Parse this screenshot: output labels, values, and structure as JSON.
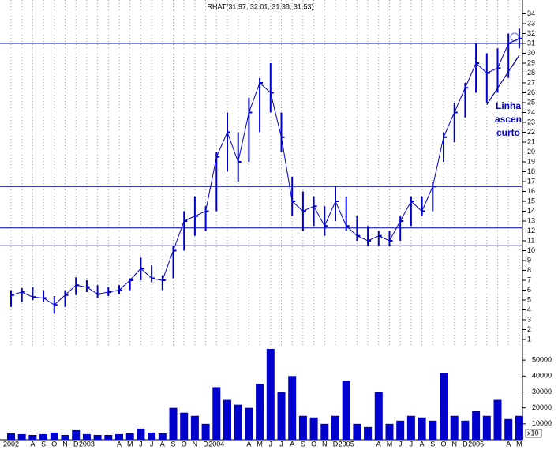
{
  "chart_data": {
    "type": "ohlc",
    "title": "RHAT(31.97, 32.01, 31.38, 31.53)",
    "categories": [
      "2002",
      null,
      "A",
      "S",
      "O",
      "N",
      "D",
      "2003",
      null,
      null,
      "A",
      "M",
      "J",
      "J",
      "A",
      "S",
      "O",
      "N",
      "D",
      "2004",
      null,
      null,
      "A",
      "M",
      "J",
      "J",
      "A",
      "S",
      "O",
      "N",
      "D",
      "2005",
      null,
      null,
      "A",
      "M",
      "J",
      "J",
      "A",
      "S",
      "O",
      "N",
      "D",
      "2006",
      null,
      null,
      "A",
      "M"
    ],
    "series": [
      {
        "name": "high",
        "color": "#0000cc",
        "values": [
          6,
          6.2,
          6.3,
          6.0,
          5.4,
          6.0,
          7.3,
          7.0,
          6.5,
          6.3,
          6.5,
          7.2,
          9.3,
          8.5,
          7.5,
          10.5,
          14.0,
          15.5,
          14.5,
          20.0,
          24.0,
          22.0,
          25.5,
          27.5,
          29.0,
          24.0,
          17.5,
          16.0,
          15.5,
          14.5,
          16.5,
          15.5,
          13.5,
          12.5,
          12.0,
          12.0,
          13.5,
          15.5,
          15.5,
          17.0,
          22.0,
          25.0,
          27.0,
          31.0,
          30.0,
          30.5,
          32.0,
          32.5
        ]
      },
      {
        "name": "low",
        "color": "#0000cc",
        "values": [
          4.3,
          4.8,
          5.0,
          4.8,
          3.6,
          4.3,
          5.5,
          5.8,
          5.2,
          5.4,
          5.6,
          6.0,
          7.0,
          6.8,
          6.0,
          7.2,
          10.0,
          11.5,
          12.0,
          14.0,
          18.0,
          17.0,
          19.0,
          22.0,
          24.0,
          20.0,
          13.5,
          12.0,
          12.5,
          11.5,
          13.0,
          12.0,
          11.0,
          10.5,
          10.5,
          10.5,
          11.0,
          12.5,
          13.5,
          14.0,
          19.0,
          21.0,
          23.5,
          26.0,
          25.0,
          26.0,
          27.5,
          30.5
        ]
      },
      {
        "name": "close",
        "color": "#0000cc",
        "values": [
          5.5,
          5.8,
          5.3,
          5.2,
          4.5,
          5.5,
          6.5,
          6.3,
          5.6,
          5.8,
          6.0,
          7.0,
          8.2,
          7.2,
          7.0,
          10.0,
          13.0,
          13.5,
          14.0,
          19.5,
          22.0,
          19.0,
          24.0,
          27.0,
          26.0,
          21.5,
          15.0,
          14.0,
          14.5,
          12.5,
          15.0,
          12.5,
          11.5,
          11.0,
          11.5,
          11.0,
          13.0,
          15.0,
          14.0,
          16.5,
          21.5,
          24.0,
          26.5,
          29.0,
          28.0,
          28.5,
          31.0,
          31.5
        ]
      }
    ],
    "volume": {
      "color": "#0000cc",
      "values": [
        4000,
        3500,
        3000,
        3500,
        4500,
        3000,
        6000,
        3500,
        3000,
        3000,
        3500,
        4000,
        7000,
        4500,
        4000,
        20000,
        17000,
        15000,
        10000,
        33000,
        25000,
        22000,
        20000,
        35000,
        57000,
        30000,
        40000,
        15000,
        14000,
        10000,
        15000,
        37000,
        10000,
        8000,
        30000,
        10000,
        12000,
        15000,
        14000,
        12000,
        42000,
        15000,
        12000,
        18000,
        15000,
        25000,
        13000,
        15000
      ],
      "ylim": [
        0,
        58000
      ],
      "yticks": [
        10000,
        20000,
        30000,
        40000,
        50000
      ],
      "scale_label": "x10"
    },
    "ylim": [
      0.2,
      35.4
    ],
    "yticks": [
      1,
      2,
      3,
      4,
      5,
      6,
      7,
      8,
      9,
      10,
      11,
      12,
      13,
      14,
      15,
      16,
      17,
      18,
      19,
      20,
      21,
      22,
      23,
      24,
      25,
      26,
      27,
      28,
      29,
      30,
      31,
      32,
      33,
      34
    ],
    "hlines": [
      31,
      16.5,
      12.3,
      10.5
    ],
    "trendline": [
      24.8,
      29.8
    ],
    "annotation": [
      "Linha",
      "ascen",
      "curto"
    ],
    "grid": true
  }
}
